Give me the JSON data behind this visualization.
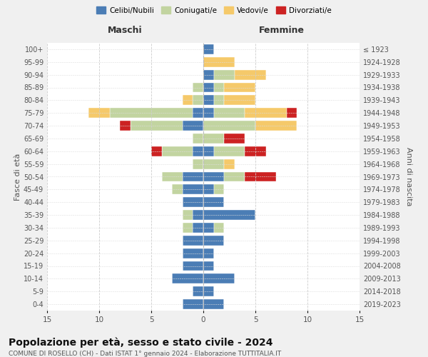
{
  "age_groups": [
    "0-4",
    "5-9",
    "10-14",
    "15-19",
    "20-24",
    "25-29",
    "30-34",
    "35-39",
    "40-44",
    "45-49",
    "50-54",
    "55-59",
    "60-64",
    "65-69",
    "70-74",
    "75-79",
    "80-84",
    "85-89",
    "90-94",
    "95-99",
    "100+"
  ],
  "birth_years": [
    "2019-2023",
    "2014-2018",
    "2009-2013",
    "2004-2008",
    "1999-2003",
    "1994-1998",
    "1989-1993",
    "1984-1988",
    "1979-1983",
    "1974-1978",
    "1969-1973",
    "1964-1968",
    "1959-1963",
    "1954-1958",
    "1949-1953",
    "1944-1948",
    "1939-1943",
    "1934-1938",
    "1929-1933",
    "1924-1928",
    "≤ 1923"
  ],
  "males": {
    "celibi": [
      2,
      1,
      3,
      2,
      2,
      2,
      1,
      1,
      2,
      2,
      2,
      0,
      1,
      0,
      2,
      1,
      0,
      0,
      0,
      0,
      0
    ],
    "coniugati": [
      0,
      0,
      0,
      0,
      0,
      0,
      1,
      1,
      0,
      1,
      2,
      1,
      3,
      1,
      5,
      8,
      1,
      1,
      0,
      0,
      0
    ],
    "vedovi": [
      0,
      0,
      0,
      0,
      0,
      0,
      0,
      0,
      0,
      0,
      0,
      0,
      0,
      0,
      0,
      2,
      1,
      0,
      0,
      0,
      0
    ],
    "divorziati": [
      0,
      0,
      0,
      0,
      0,
      0,
      0,
      0,
      0,
      0,
      0,
      0,
      1,
      0,
      1,
      0,
      0,
      0,
      0,
      0,
      0
    ]
  },
  "females": {
    "nubili": [
      2,
      1,
      3,
      1,
      1,
      2,
      1,
      5,
      2,
      1,
      2,
      0,
      1,
      0,
      0,
      1,
      1,
      1,
      1,
      0,
      1
    ],
    "coniugate": [
      0,
      0,
      0,
      0,
      0,
      0,
      1,
      0,
      0,
      1,
      2,
      2,
      3,
      2,
      5,
      3,
      1,
      1,
      2,
      0,
      0
    ],
    "vedove": [
      0,
      0,
      0,
      0,
      0,
      0,
      0,
      0,
      0,
      0,
      0,
      1,
      0,
      0,
      4,
      4,
      3,
      3,
      3,
      3,
      0
    ],
    "divorziate": [
      0,
      0,
      0,
      0,
      0,
      0,
      0,
      0,
      0,
      0,
      3,
      0,
      2,
      2,
      0,
      1,
      0,
      0,
      0,
      0,
      0
    ]
  },
  "colors": {
    "celibi": "#4b7db5",
    "coniugati": "#c2d4a0",
    "vedovi": "#f5c96a",
    "divorziati": "#cc2222"
  },
  "legend_labels": [
    "Celibi/Nubili",
    "Coniugati/e",
    "Vedovi/e",
    "Divorziati/e"
  ],
  "title": "Popolazione per età, sesso e stato civile - 2024",
  "subtitle": "COMUNE DI ROSELLO (CH) - Dati ISTAT 1° gennaio 2024 - Elaborazione TUTTITALIA.IT",
  "xlabel_left": "Maschi",
  "xlabel_right": "Femmine",
  "ylabel_left": "Fasce di età",
  "ylabel_right": "Anni di nascita",
  "xlim": 15,
  "bg_color": "#f0f0f0",
  "plot_bg_color": "#ffffff"
}
